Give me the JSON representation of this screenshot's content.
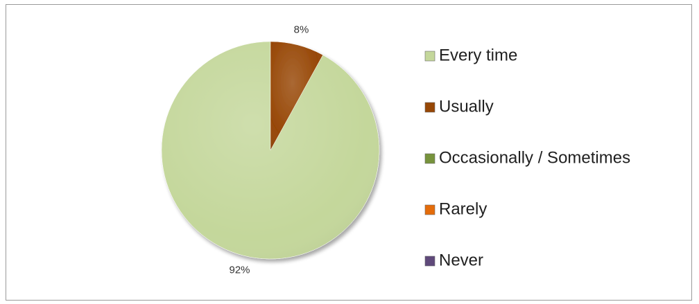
{
  "chart_data": {
    "type": "pie",
    "title": "",
    "categories": [
      "Every time",
      "Usually",
      "Occasionally / Sometimes",
      "Rarely",
      "Never"
    ],
    "values": [
      92,
      8,
      0,
      0,
      0
    ],
    "labels": [
      "92%",
      "8%",
      "",
      "",
      ""
    ],
    "colors": [
      "#c4d79b",
      "#974706",
      "#77933c",
      "#e46c0a",
      "#5f497a"
    ],
    "legend": "right"
  }
}
